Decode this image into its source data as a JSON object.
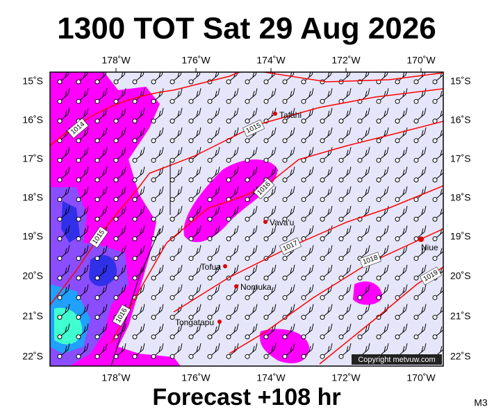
{
  "header": {
    "title": "1300 TOT Sat 29 Aug 2026"
  },
  "footer": {
    "forecast": "Forecast +108 hr",
    "code": "M3"
  },
  "axes": {
    "longitudes": [
      "178˚W",
      "176˚W",
      "174˚W",
      "172˚W",
      "170˚W"
    ],
    "latitudes": [
      "15˚S",
      "16˚S",
      "17˚S",
      "18˚S",
      "19˚S",
      "20˚S",
      "21˚S",
      "22˚S"
    ]
  },
  "isobars": [
    "1014",
    "1015",
    "1016",
    "1015",
    "1017",
    "1016",
    "1018",
    "1019"
  ],
  "places": [
    "Tafahi",
    "Vava'u",
    "Niue",
    "Tofua",
    "Nomuka",
    "Tongatapu"
  ],
  "copyright": "Copyright metvuw.com"
}
